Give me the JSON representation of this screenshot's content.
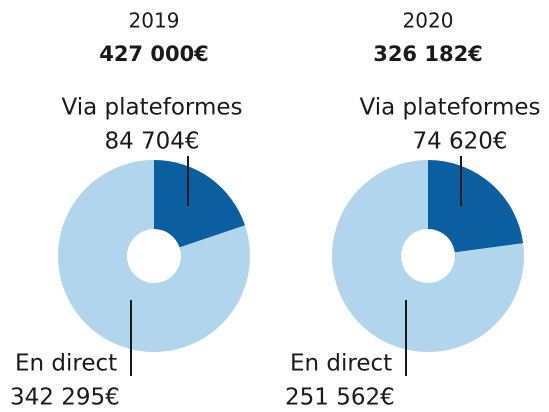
{
  "chart_data": [
    {
      "type": "pie",
      "title": "2019",
      "subtitle": "427 000€",
      "categories": [
        "Via plateformes",
        "En direct"
      ],
      "values": [
        84704,
        342295
      ],
      "value_labels": [
        "84 704€",
        "342 295€"
      ],
      "colors": [
        "#0b5fa1",
        "#b1d5ed"
      ]
    },
    {
      "type": "pie",
      "title": "2020",
      "subtitle": "326 182€",
      "categories": [
        "Via plateformes",
        "En direct"
      ],
      "values": [
        74620,
        251562
      ],
      "value_labels": [
        "74 620€",
        "251 562€"
      ],
      "colors": [
        "#0b5fa1",
        "#b1d5ed"
      ]
    }
  ]
}
